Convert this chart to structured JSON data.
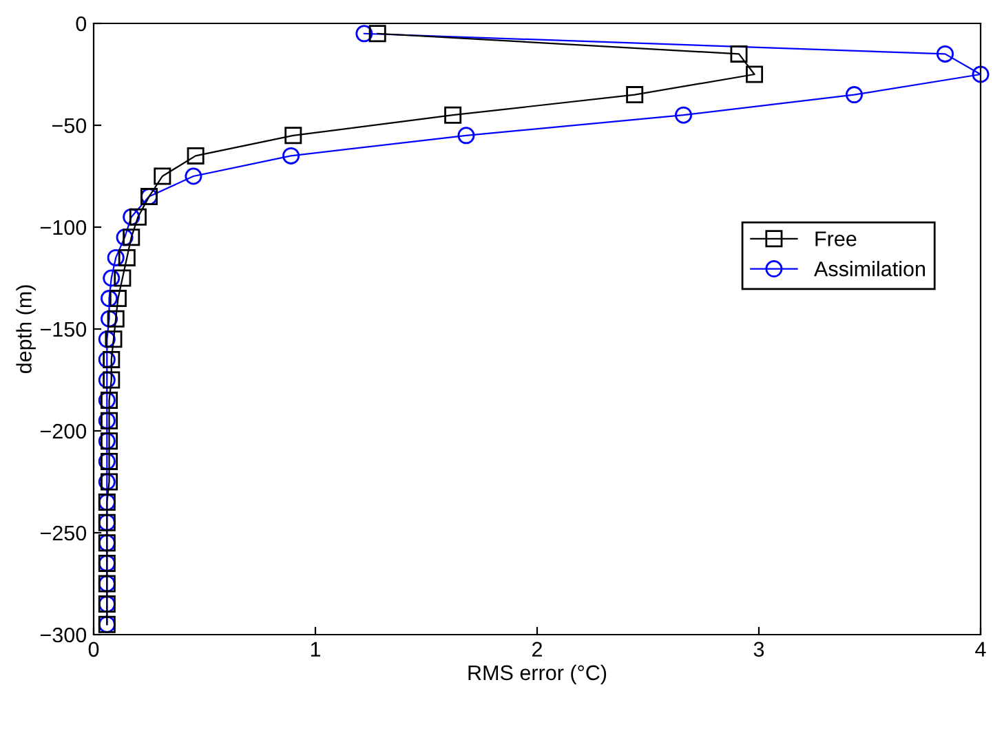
{
  "chart_data": {
    "type": "line",
    "xlabel": "RMS error (°C)",
    "ylabel": "depth (m)",
    "xlim": [
      0,
      4
    ],
    "xticks": [
      0,
      1,
      2,
      3,
      4
    ],
    "ylim": [
      -300,
      0
    ],
    "yticks": [
      -300,
      -250,
      -200,
      -150,
      -100,
      -50,
      0
    ],
    "grid": false,
    "legend": "center right",
    "series": [
      {
        "name": "Free",
        "color": "#000000",
        "marker": "square",
        "x": [
          1.28,
          2.91,
          2.98,
          2.44,
          1.62,
          0.9,
          0.46,
          0.31,
          0.25,
          0.2,
          0.17,
          0.15,
          0.13,
          0.11,
          0.1,
          0.09,
          0.08,
          0.08,
          0.07,
          0.07,
          0.07,
          0.07,
          0.07,
          0.06,
          0.06,
          0.06,
          0.06,
          0.06,
          0.06,
          0.06
        ],
        "values": [
          -5,
          -15,
          -25,
          -35,
          -45,
          -55,
          -65,
          -75,
          -85,
          -95,
          -105,
          -115,
          -125,
          -135,
          -145,
          -155,
          -165,
          -175,
          -185,
          -195,
          -205,
          -215,
          -225,
          -235,
          -245,
          -255,
          -265,
          -275,
          -285,
          -295
        ]
      },
      {
        "name": "Assimilation",
        "color": "#0000ff",
        "marker": "circle",
        "x": [
          1.22,
          3.84,
          4.0,
          3.43,
          2.66,
          1.68,
          0.89,
          0.45,
          0.25,
          0.17,
          0.14,
          0.1,
          0.08,
          0.07,
          0.07,
          0.06,
          0.06,
          0.06,
          0.06,
          0.06,
          0.06,
          0.06,
          0.06,
          0.06,
          0.06,
          0.06,
          0.06,
          0.06,
          0.06,
          0.06
        ],
        "values": [
          -5,
          -15,
          -25,
          -35,
          -45,
          -55,
          -65,
          -75,
          -85,
          -95,
          -105,
          -115,
          -125,
          -135,
          -145,
          -155,
          -165,
          -175,
          -185,
          -195,
          -205,
          -215,
          -225,
          -235,
          -245,
          -255,
          -265,
          -275,
          -285,
          -295
        ]
      }
    ]
  }
}
